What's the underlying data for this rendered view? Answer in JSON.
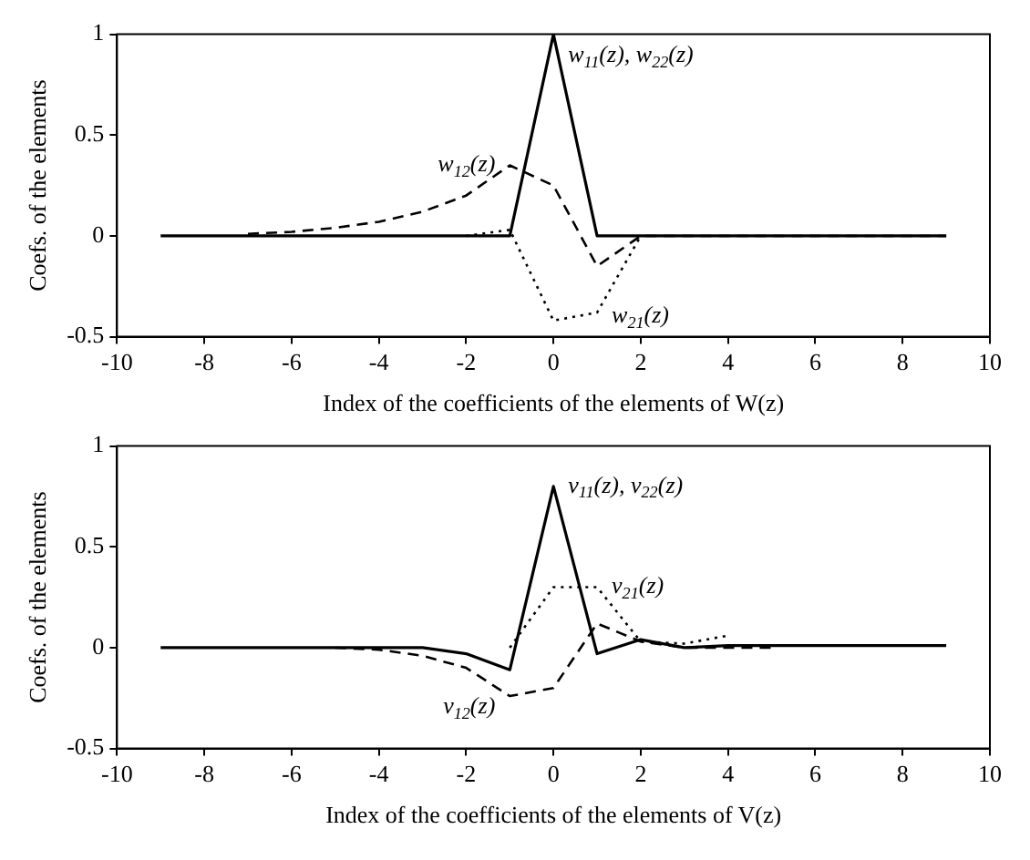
{
  "chart_data": [
    {
      "type": "line",
      "xlabel": "Index of the coefficients of the elements of W(z)",
      "ylabel": "Coefs. of the elements",
      "xlim": [
        -10,
        10
      ],
      "xticks": [
        -10,
        -8,
        -6,
        -4,
        -2,
        0,
        2,
        4,
        6,
        8,
        10
      ],
      "ylim": [
        -0.5,
        1
      ],
      "yticks": [
        -0.5,
        0,
        0.5,
        1
      ],
      "grid": false,
      "legend": false,
      "series": [
        {
          "name": "w$_{11}$(z), w$_{22}$(z)",
          "color": "#000000",
          "line_style": "solid",
          "x": [
            -9,
            -8,
            -7,
            -6,
            -5,
            -4,
            -3,
            -2,
            -1,
            0,
            1,
            2,
            3,
            4,
            5,
            6,
            7,
            8,
            9
          ],
          "values": [
            0,
            0,
            0,
            0,
            0,
            0,
            0,
            0,
            0,
            1,
            0,
            0,
            0,
            0,
            0,
            0,
            0,
            0,
            0
          ]
        },
        {
          "name": "w$_{12}$(z)",
          "color": "#000000",
          "line_style": "dashed",
          "x": [
            -7,
            -6,
            -5,
            -4,
            -3,
            -2,
            -1,
            0,
            1,
            2,
            3,
            4,
            5,
            6,
            7,
            8,
            9
          ],
          "values": [
            0.01,
            0.02,
            0.04,
            0.07,
            0.12,
            0.2,
            0.35,
            0.25,
            -0.15,
            0,
            0,
            0,
            0,
            0,
            0,
            0,
            0
          ]
        },
        {
          "name": "w$_{21}$(z)",
          "color": "#000000",
          "line_style": "dotted",
          "x": [
            -2,
            -1,
            0,
            1,
            2
          ],
          "values": [
            0,
            0.03,
            -0.42,
            -0.38,
            0
          ]
        }
      ]
    },
    {
      "type": "line",
      "xlabel": "Index of the coefficients of the elements of V(z)",
      "ylabel": "Coefs. of the elements",
      "xlim": [
        -10,
        10
      ],
      "xticks": [
        -10,
        -8,
        -6,
        -4,
        -2,
        0,
        2,
        4,
        6,
        8,
        10
      ],
      "ylim": [
        -0.5,
        1
      ],
      "yticks": [
        -0.5,
        0,
        0.5,
        1
      ],
      "grid": false,
      "legend": false,
      "series": [
        {
          "name": "v$_{11}$(z), v$_{22}$(z)",
          "color": "#000000",
          "line_style": "solid",
          "x": [
            -9,
            -8,
            -7,
            -6,
            -5,
            -4,
            -3,
            -2,
            -1,
            0,
            1,
            2,
            3,
            4,
            5,
            6,
            7,
            8,
            9
          ],
          "values": [
            0,
            0,
            0,
            0,
            0,
            0,
            0,
            -0.03,
            -0.11,
            0.8,
            -0.03,
            0.04,
            0,
            0.01,
            0.01,
            0.01,
            0.01,
            0.01,
            0.01
          ]
        },
        {
          "name": "v$_{12}$(z)",
          "color": "#000000",
          "line_style": "dashed",
          "x": [
            -5,
            -4,
            -3,
            -2,
            -1,
            0,
            1,
            2,
            3,
            4,
            5
          ],
          "values": [
            0,
            -0.01,
            -0.04,
            -0.1,
            -0.24,
            -0.2,
            0.12,
            0.03,
            0,
            0,
            0
          ]
        },
        {
          "name": "v$_{21}$(z)",
          "color": "#000000",
          "line_style": "dotted",
          "x": [
            -1,
            0,
            1,
            2,
            3,
            4
          ],
          "values": [
            0,
            0.3,
            0.3,
            0.03,
            0.02,
            0.06
          ]
        }
      ]
    }
  ]
}
